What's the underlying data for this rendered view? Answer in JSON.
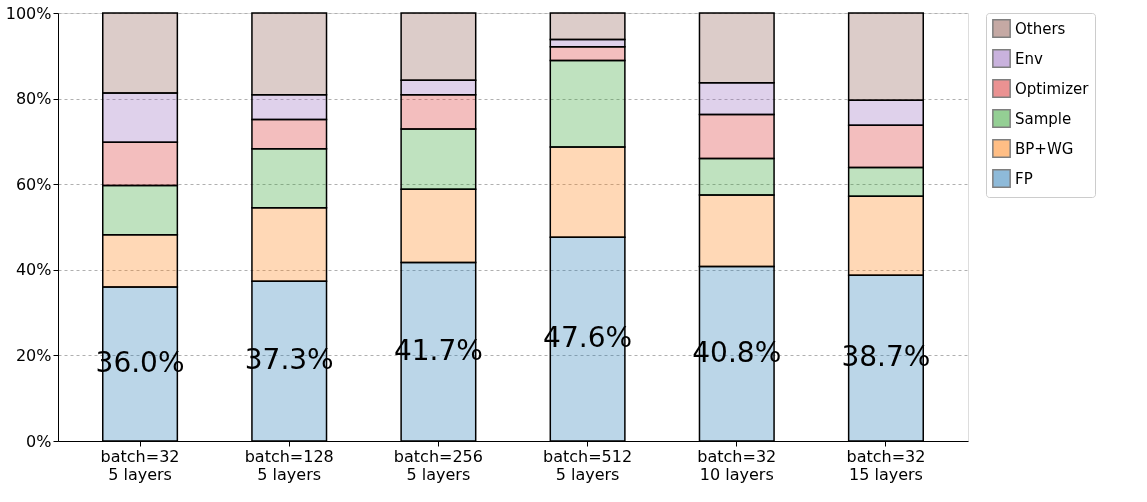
{
  "chart_data": {
    "type": "bar",
    "stacked": true,
    "categories": [
      "batch=32\n5 layers",
      "batch=128\n5 layers",
      "batch=256\n5 layers",
      "batch=512\n5 layers",
      "batch=32\n10 layers",
      "batch=32\n15 layers"
    ],
    "series": [
      {
        "name": "FP",
        "color": "#1f77b4",
        "values": [
          36.0,
          37.3,
          41.7,
          47.6,
          40.8,
          38.7
        ],
        "value_labels": [
          "36.0%",
          "37.3%",
          "41.7%",
          "47.6%",
          "40.8%",
          "38.7%"
        ]
      },
      {
        "name": "BP+WG",
        "color": "#ff7f0e",
        "values": [
          12.2,
          17.2,
          17.1,
          21.1,
          16.7,
          18.5
        ]
      },
      {
        "name": "Sample",
        "color": "#2ca02c",
        "values": [
          11.5,
          13.8,
          14.1,
          20.2,
          8.5,
          6.7
        ]
      },
      {
        "name": "Optimizer",
        "color": "#d62728",
        "values": [
          10.1,
          6.8,
          8.0,
          3.2,
          10.3,
          9.9
        ]
      },
      {
        "name": "Env",
        "color": "#9467bd",
        "values": [
          11.5,
          5.8,
          3.4,
          1.7,
          7.4,
          5.8
        ]
      },
      {
        "name": "Others",
        "color": "#8c564b",
        "values": [
          18.7,
          19.1,
          15.7,
          6.2,
          16.3,
          20.4
        ]
      }
    ],
    "ylim": [
      0,
      100
    ],
    "yticks": [
      {
        "value": 0,
        "label": "0%"
      },
      {
        "value": 20,
        "label": "20%"
      },
      {
        "value": 40,
        "label": "40%"
      },
      {
        "value": 60,
        "label": "60%"
      },
      {
        "value": 80,
        "label": "80%"
      },
      {
        "value": 100,
        "label": "100%"
      }
    ],
    "grid": "y",
    "legend": "top right"
  }
}
